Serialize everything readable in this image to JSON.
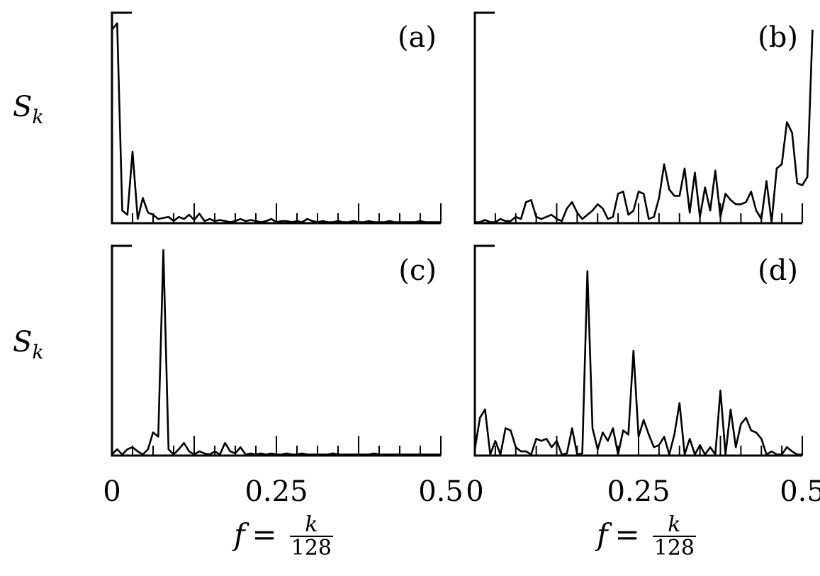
{
  "chart_data": [
    {
      "type": "line",
      "panel_label": "(a)",
      "ylabel": "S_k",
      "xlim": [
        0,
        0.5
      ],
      "x_step": 0.0078125,
      "xticklabels": [],
      "y": [
        0.92,
        0.95,
        0.06,
        0.04,
        0.34,
        0.02,
        0.12,
        0.05,
        0.04,
        0.02,
        0.025,
        0.03,
        0.01,
        0.03,
        0.02,
        0.04,
        0.015,
        0.045,
        0.01,
        0.02,
        0.01,
        0.015,
        0.01,
        0.005,
        0.01,
        0.02,
        0.01,
        0.015,
        0.01,
        0.005,
        0.01,
        0.02,
        0.005,
        0.01,
        0.01,
        0.005,
        0.01,
        0.005,
        0.02,
        0.01,
        0.005,
        0.01,
        0.005,
        0.005,
        0.01,
        0.005,
        0.005,
        0.01,
        0.005,
        0.005,
        0.01,
        0.005,
        0.005,
        0.005,
        0.01,
        0.005,
        0.005,
        0.005,
        0.005,
        0.005,
        0.01,
        0.005,
        0.005,
        0.005,
        0.005
      ]
    },
    {
      "type": "line",
      "panel_label": "(b)",
      "ylabel": "",
      "xlim": [
        0,
        0.5
      ],
      "x_step": 0.0078125,
      "xticklabels": [],
      "y": [
        0.005,
        0.005,
        0.015,
        0.005,
        0.005,
        0.02,
        0.01,
        0.01,
        0.03,
        0.02,
        0.1,
        0.11,
        0.03,
        0.02,
        0.03,
        0.04,
        0.02,
        0.01,
        0.07,
        0.1,
        0.05,
        0.02,
        0.04,
        0.06,
        0.09,
        0.07,
        0.02,
        0.03,
        0.14,
        0.15,
        0.04,
        0.06,
        0.15,
        0.14,
        0.02,
        0.03,
        0.12,
        0.28,
        0.16,
        0.13,
        0.13,
        0.26,
        0.05,
        0.24,
        0.03,
        0.17,
        0.06,
        0.25,
        0.03,
        0.14,
        0.11,
        0.09,
        0.09,
        0.1,
        0.15,
        0.06,
        0.02,
        0.2,
        0.005,
        0.26,
        0.28,
        0.48,
        0.43,
        0.19,
        0.18,
        0.22,
        0.92
      ]
    },
    {
      "type": "line",
      "panel_label": "(c)",
      "ylabel": "S_k",
      "xlim": [
        0,
        0.5
      ],
      "x_step": 0.0078125,
      "xticklabels": [
        "0",
        "0.25",
        "0.5"
      ],
      "y": [
        0.005,
        0.03,
        0.005,
        0.03,
        0.04,
        0.02,
        0.005,
        0.03,
        0.11,
        0.09,
        0.98,
        0.03,
        0.005,
        0.03,
        0.06,
        0.02,
        0.005,
        0.02,
        0.01,
        0.005,
        0.02,
        0.005,
        0.06,
        0.02,
        0.01,
        0.04,
        0.005,
        0.01,
        0.005,
        0.01,
        0.005,
        0.01,
        0.005,
        0.005,
        0.01,
        0.005,
        0.005,
        0.01,
        0.005,
        0.005,
        0.005,
        0.005,
        0.005,
        0.01,
        0.005,
        0.005,
        0.005,
        0.005,
        0.005,
        0.005,
        0.005,
        0.01,
        0.005,
        0.005,
        0.005,
        0.005,
        0.005,
        0.005,
        0.005,
        0.005,
        0.005,
        0.005,
        0.005,
        0.005,
        0.005
      ]
    },
    {
      "type": "line",
      "panel_label": "(d)",
      "ylabel": "",
      "xlim": [
        0,
        0.5
      ],
      "x_step": 0.0078125,
      "xticklabels": [
        "0",
        "0.25",
        "0.5"
      ],
      "y": [
        0.03,
        0.18,
        0.22,
        0.005,
        0.07,
        0.005,
        0.13,
        0.12,
        0.04,
        0.02,
        0.02,
        0.005,
        0.08,
        0.07,
        0.08,
        0.04,
        0.07,
        0.005,
        0.01,
        0.13,
        0.005,
        0.01,
        0.88,
        0.13,
        0.03,
        0.11,
        0.07,
        0.13,
        0.005,
        0.12,
        0.1,
        0.5,
        0.09,
        0.17,
        0.1,
        0.04,
        0.05,
        0.09,
        0.005,
        0.1,
        0.25,
        0.005,
        0.08,
        0.005,
        0.05,
        0.005,
        0.04,
        0.005,
        0.31,
        0.005,
        0.22,
        0.04,
        0.15,
        0.18,
        0.12,
        0.11,
        0.08,
        0.005,
        0.02,
        0.005,
        0.005,
        0.04,
        0.02,
        0.005,
        0.005
      ]
    }
  ],
  "x_axis_label": {
    "lhs": "f",
    "eq": "=",
    "num": "k",
    "den": "128"
  },
  "y_axis_label": {
    "base": "S",
    "sub": "k"
  }
}
